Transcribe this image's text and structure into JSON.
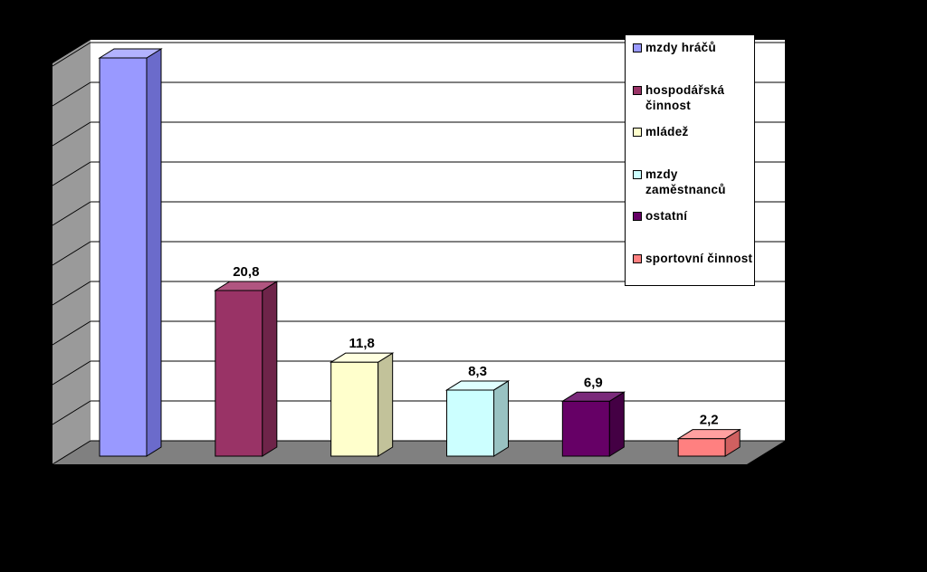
{
  "chart_data": {
    "type": "bar",
    "categories": [
      "mzdy hráčů",
      "hospodářská činnost",
      "mládež",
      "mzdy zaměstnanců",
      "ostatní",
      "sportovní činnost"
    ],
    "values": [
      50,
      20.8,
      11.8,
      8.3,
      6.9,
      2.2
    ],
    "value_labels": [
      "",
      "20,8",
      "11,8",
      "8,3",
      "6,9",
      "2,2"
    ],
    "ylim": [
      0,
      50
    ],
    "grid": true,
    "legend_position": "top-right",
    "colors": [
      "#9999FF",
      "#993366",
      "#FFFFCC",
      "#CCFFFF",
      "#660066",
      "#FF8080"
    ],
    "side_colors": [
      "#6B6BCB",
      "#6E2449",
      "#C2C29A",
      "#99C2C2",
      "#440044",
      "#D06060"
    ],
    "top_colors": [
      "#B3B3FF",
      "#B05580",
      "#FFFFE0",
      "#E0FFFF",
      "#7A2A7A",
      "#FFA0A0"
    ]
  },
  "legend": {
    "items": [
      {
        "label": "mzdy hráčů",
        "color": "#9999FF"
      },
      {
        "label": "hospodářská činnost",
        "color": "#993366"
      },
      {
        "label": "mládež",
        "color": "#FFFFCC"
      },
      {
        "label": "mzdy zaměstnanců",
        "color": "#CCFFFF"
      },
      {
        "label": "ostatní",
        "color": "#660066"
      },
      {
        "label": "sportovní činnost",
        "color": "#FF8080"
      }
    ]
  }
}
